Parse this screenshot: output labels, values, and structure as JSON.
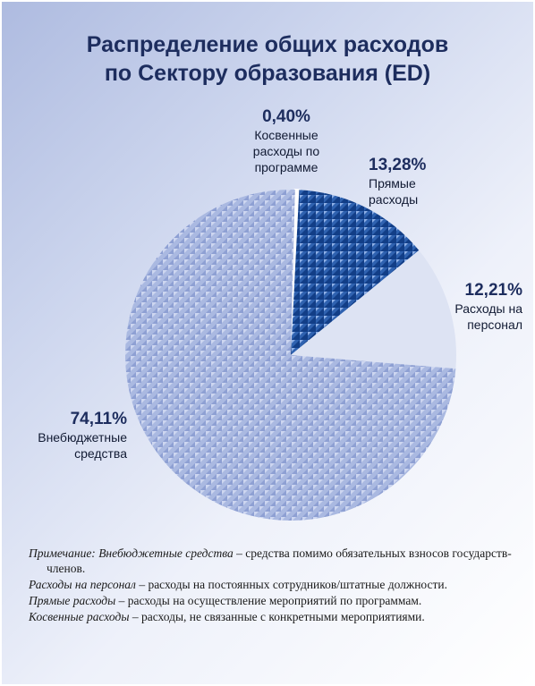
{
  "chart_data": {
    "type": "pie",
    "title_lines": [
      "Распределение общих расходов",
      "по Сектору образования (ED)"
    ],
    "slices": [
      {
        "pct_label": "0,40%",
        "label": "Косвенные\nрасходы по\nпрограмме",
        "value": 0.4,
        "color": "#ffffff",
        "pattern": "none"
      },
      {
        "pct_label": "13,28%",
        "label": "Прямые\nрасходы",
        "value": 13.28,
        "color": "#2f62b0",
        "pattern": "triangles-dark"
      },
      {
        "pct_label": "12,21%",
        "label": "Расходы на\nперсонал",
        "value": 12.21,
        "color": "#dde3f3",
        "pattern": "none"
      },
      {
        "pct_label": "74,11%",
        "label": "Внебюджетные\nсредства",
        "value": 74.11,
        "color": "#a9b8e0",
        "pattern": "triangles-light"
      }
    ]
  },
  "notes": [
    {
      "prefix": "Примечание: ",
      "term": "Внебюджетные средства",
      "text": " – средства помимо обязательных взносов государств-членов."
    },
    {
      "prefix": "",
      "term": "Расходы на персонал",
      "text": " – расходы на постоянных сотрудников/штатные должности."
    },
    {
      "prefix": "",
      "term": "Прямые расходы",
      "text": " – расходы на осуществление мероприятий по программам."
    },
    {
      "prefix": "",
      "term": "Косвенные расходы",
      "text": " – расходы, не связанные с конкретными мероприятиями."
    }
  ]
}
